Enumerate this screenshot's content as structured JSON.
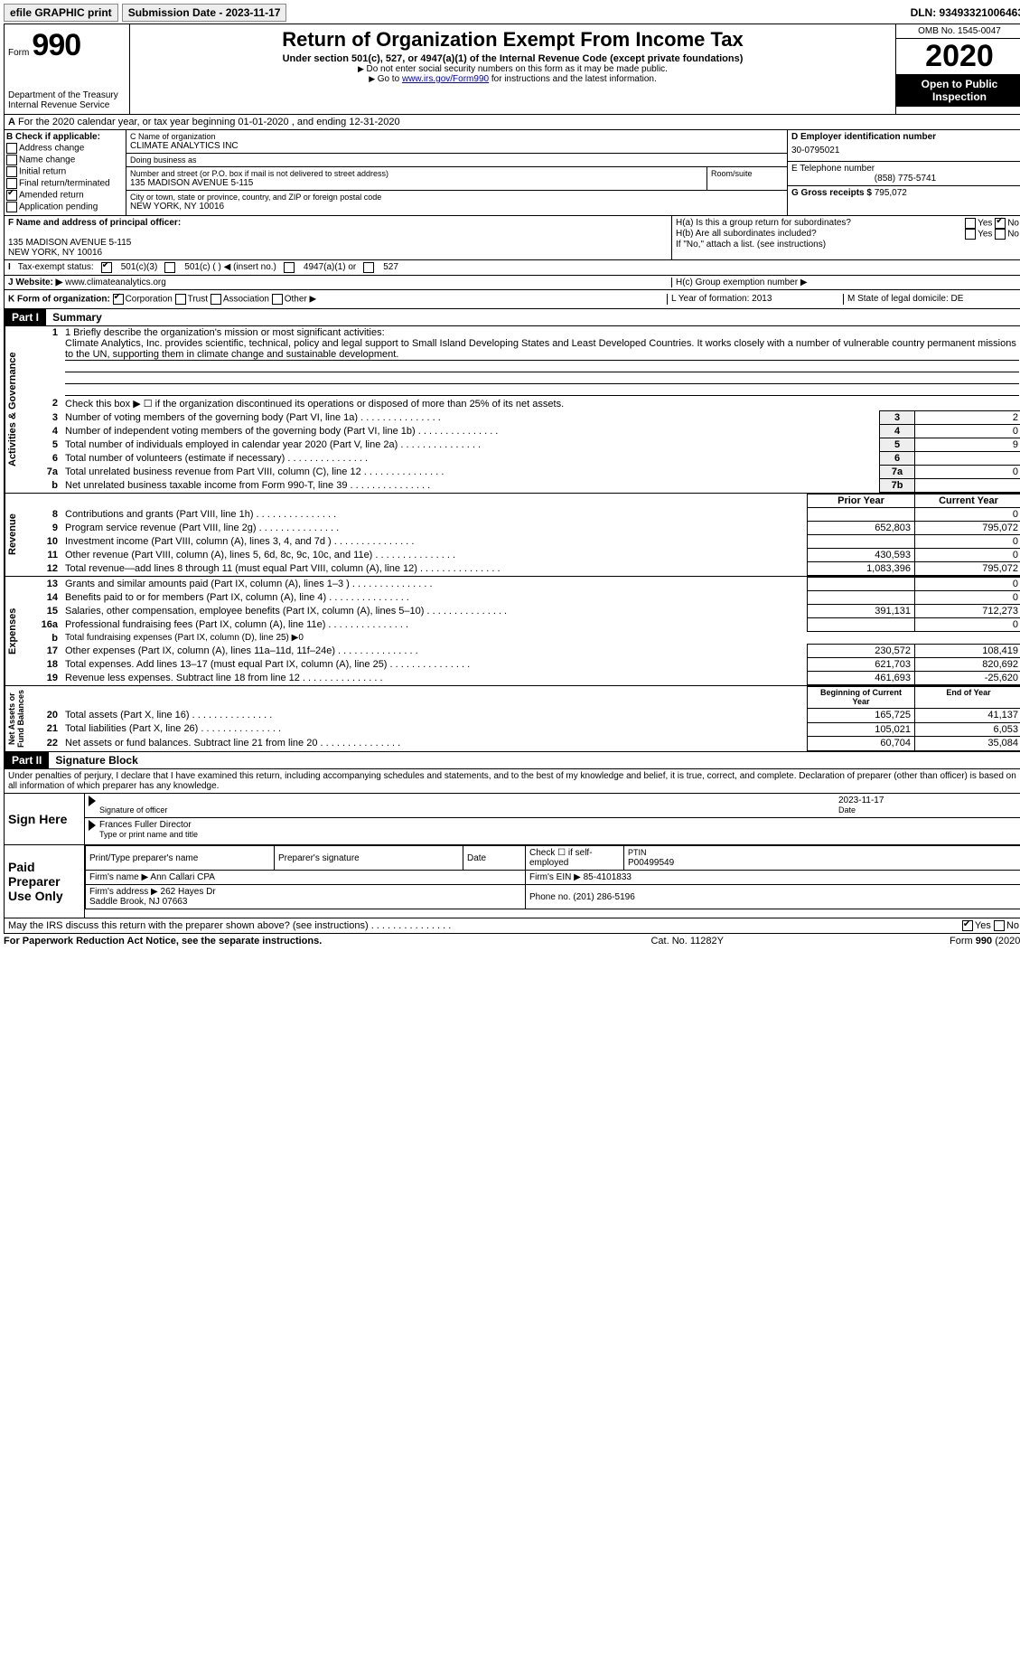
{
  "topbar": {
    "efile": "efile GRAPHIC print",
    "submission_label": "Submission Date - 2023-11-17",
    "dln_label": "DLN: 93493321006463"
  },
  "header": {
    "form_word": "Form",
    "form_number": "990",
    "dept": "Department of the Treasury\nInternal Revenue Service",
    "title": "Return of Organization Exempt From Income Tax",
    "subtitle": "Under section 501(c), 527, or 4947(a)(1) of the Internal Revenue Code (except private foundations)",
    "arrow1": "Do not enter social security numbers on this form as it may be made public.",
    "arrow2_pre": "Go to ",
    "arrow2_link": "www.irs.gov/Form990",
    "arrow2_post": " for instructions and the latest information.",
    "omb": "OMB No. 1545-0047",
    "year": "2020",
    "open": "Open to Public Inspection"
  },
  "rowA": "For the 2020 calendar year, or tax year beginning 01-01-2020    , and ending 12-31-2020",
  "boxB": {
    "hdr": "B Check if applicable:",
    "addr": "Address change",
    "name": "Name change",
    "init": "Initial return",
    "final": "Final return/terminated",
    "amend": "Amended return",
    "app": "Application pending"
  },
  "boxC": {
    "name_label": "C Name of organization",
    "name": "CLIMATE ANALYTICS INC",
    "dba_label": "Doing business as",
    "dba": "",
    "street_label": "Number and street (or P.O. box if mail is not delivered to street address)",
    "room_label": "Room/suite",
    "street": "135 MADISON AVENUE 5-115",
    "city_label": "City or town, state or province, country, and ZIP or foreign postal code",
    "city": "NEW YORK, NY  10016"
  },
  "boxD": {
    "label": "D Employer identification number",
    "val": "30-0795021"
  },
  "boxE": {
    "label": "E Telephone number",
    "val": "(858) 775-5741"
  },
  "boxG": {
    "label": "G Gross receipts $",
    "val": "795,072"
  },
  "boxF": {
    "label": "F Name and address of principal officer:",
    "line1": "135 MADISON AVENUE 5-115",
    "line2": "NEW YORK, NY  10016"
  },
  "boxH": {
    "a": "H(a)  Is this a group return for subordinates?",
    "b": "H(b)  Are all subordinates included?",
    "bnote": "If \"No,\" attach a list. (see instructions)",
    "c": "H(c)  Group exemption number ▶",
    "yes": "Yes",
    "no": "No"
  },
  "rowI": {
    "label": "Tax-exempt status:",
    "o1": "501(c)(3)",
    "o2": "501(c) (   ) ◀ (insert no.)",
    "o3": "4947(a)(1) or",
    "o4": "527"
  },
  "rowJ": {
    "label": "Website: ▶",
    "val": "www.climateanalytics.org"
  },
  "rowK": {
    "label": "K Form of organization:",
    "corp": "Corporation",
    "trust": "Trust",
    "assoc": "Association",
    "other": "Other ▶",
    "L": "L Year of formation: 2013",
    "M": "M State of legal domicile: DE"
  },
  "partI": {
    "hdr": "Part I",
    "title": "Summary",
    "l1_label": "1  Briefly describe the organization's mission or most significant activities:",
    "l1_text": "Climate Analytics, Inc. provides scientific, technical, policy and legal support to Small Island Developing States and Least Developed Countries. It works closely with a number of vulnerable country permanent missions to the UN, supporting them in climate change and sustainable development.",
    "l2": "Check this box ▶ ☐ if the organization discontinued its operations or disposed of more than 25% of its net assets.",
    "rows": [
      {
        "n": "3",
        "d": "Number of voting members of the governing body (Part VI, line 1a)",
        "box": "3",
        "v": "2"
      },
      {
        "n": "4",
        "d": "Number of independent voting members of the governing body (Part VI, line 1b)",
        "box": "4",
        "v": "0"
      },
      {
        "n": "5",
        "d": "Total number of individuals employed in calendar year 2020 (Part V, line 2a)",
        "box": "5",
        "v": "9"
      },
      {
        "n": "6",
        "d": "Total number of volunteers (estimate if necessary)",
        "box": "6",
        "v": ""
      },
      {
        "n": "7a",
        "d": "Total unrelated business revenue from Part VIII, column (C), line 12",
        "box": "7a",
        "v": "0"
      },
      {
        "n": "b",
        "d": "Net unrelated business taxable income from Form 990-T, line 39",
        "box": "7b",
        "v": ""
      }
    ],
    "py": "Prior Year",
    "cy": "Current Year",
    "revenue": [
      {
        "n": "8",
        "d": "Contributions and grants (Part VIII, line 1h)",
        "p": "",
        "c": "0"
      },
      {
        "n": "9",
        "d": "Program service revenue (Part VIII, line 2g)",
        "p": "652,803",
        "c": "795,072"
      },
      {
        "n": "10",
        "d": "Investment income (Part VIII, column (A), lines 3, 4, and 7d )",
        "p": "",
        "c": "0"
      },
      {
        "n": "11",
        "d": "Other revenue (Part VIII, column (A), lines 5, 6d, 8c, 9c, 10c, and 11e)",
        "p": "430,593",
        "c": "0"
      },
      {
        "n": "12",
        "d": "Total revenue—add lines 8 through 11 (must equal Part VIII, column (A), line 12)",
        "p": "1,083,396",
        "c": "795,072"
      }
    ],
    "expenses": [
      {
        "n": "13",
        "d": "Grants and similar amounts paid (Part IX, column (A), lines 1–3 )",
        "p": "",
        "c": "0"
      },
      {
        "n": "14",
        "d": "Benefits paid to or for members (Part IX, column (A), line 4)",
        "p": "",
        "c": "0"
      },
      {
        "n": "15",
        "d": "Salaries, other compensation, employee benefits (Part IX, column (A), lines 5–10)",
        "p": "391,131",
        "c": "712,273"
      },
      {
        "n": "16a",
        "d": "Professional fundraising fees (Part IX, column (A), line 11e)",
        "p": "",
        "c": "0"
      },
      {
        "n": "b",
        "d": "Total fundraising expenses (Part IX, column (D), line 25) ▶0",
        "p": "-",
        "c": "-"
      },
      {
        "n": "17",
        "d": "Other expenses (Part IX, column (A), lines 11a–11d, 11f–24e)",
        "p": "230,572",
        "c": "108,419"
      },
      {
        "n": "18",
        "d": "Total expenses. Add lines 13–17 (must equal Part IX, column (A), line 25)",
        "p": "621,703",
        "c": "820,692"
      },
      {
        "n": "19",
        "d": "Revenue less expenses. Subtract line 18 from line 12",
        "p": "461,693",
        "c": "-25,620"
      }
    ],
    "boy": "Beginning of Current Year",
    "eoy": "End of Year",
    "net": [
      {
        "n": "20",
        "d": "Total assets (Part X, line 16)",
        "p": "165,725",
        "c": "41,137"
      },
      {
        "n": "21",
        "d": "Total liabilities (Part X, line 26)",
        "p": "105,021",
        "c": "6,053"
      },
      {
        "n": "22",
        "d": "Net assets or fund balances. Subtract line 21 from line 20",
        "p": "60,704",
        "c": "35,084"
      }
    ],
    "vlabels": {
      "ag": "Activities & Governance",
      "rev": "Revenue",
      "exp": "Expenses",
      "net": "Net Assets or\nFund Balances"
    }
  },
  "partII": {
    "hdr": "Part II",
    "title": "Signature Block",
    "penalty": "Under penalties of perjury, I declare that I have examined this return, including accompanying schedules and statements, and to the best of my knowledge and belief, it is true, correct, and complete. Declaration of preparer (other than officer) is based on all information of which preparer has any knowledge.",
    "sign": "Sign Here",
    "sig_officer": "Signature of officer",
    "date": "Date",
    "sig_date": "2023-11-17",
    "name_title": "Frances Fuller  Director",
    "name_label": "Type or print name and title",
    "paid": "Paid Preparer Use Only",
    "pt_name_l": "Print/Type preparer's name",
    "pt_sig_l": "Preparer's signature",
    "pt_date_l": "Date",
    "pt_check": "Check ☐ if self-employed",
    "ptin_l": "PTIN",
    "ptin": "P00499549",
    "firm_name_l": "Firm's name   ▶",
    "firm_name": "Ann Callari CPA",
    "firm_ein_l": "Firm's EIN ▶",
    "firm_ein": "85-4101833",
    "firm_addr_l": "Firm's address ▶",
    "firm_addr": "262 Hayes Dr\nSaddle Brook, NJ  07663",
    "phone_l": "Phone no.",
    "phone": "(201) 286-5196",
    "discuss": "May the IRS discuss this return with the preparer shown above? (see instructions)"
  },
  "footer": {
    "left": "For Paperwork Reduction Act Notice, see the separate instructions.",
    "mid": "Cat. No. 11282Y",
    "right": "Form 990 (2020)"
  }
}
